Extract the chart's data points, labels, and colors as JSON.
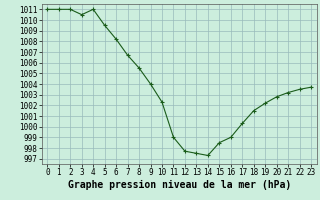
{
  "x": [
    0,
    1,
    2,
    3,
    4,
    5,
    6,
    7,
    8,
    9,
    10,
    11,
    12,
    13,
    14,
    15,
    16,
    17,
    18,
    19,
    20,
    21,
    22,
    23
  ],
  "y": [
    1011,
    1011,
    1011,
    1010.5,
    1011,
    1009.5,
    1008.2,
    1006.7,
    1005.5,
    1004.0,
    1002.3,
    999.0,
    997.7,
    997.5,
    997.3,
    998.5,
    999.0,
    1000.3,
    1001.5,
    1002.2,
    1002.8,
    1003.2,
    1003.5,
    1003.7
  ],
  "ylim": [
    996.5,
    1011.5
  ],
  "yticks": [
    997,
    998,
    999,
    1000,
    1001,
    1002,
    1003,
    1004,
    1005,
    1006,
    1007,
    1008,
    1009,
    1010,
    1011
  ],
  "xlim": [
    -0.5,
    23.5
  ],
  "xticks": [
    0,
    1,
    2,
    3,
    4,
    5,
    6,
    7,
    8,
    9,
    10,
    11,
    12,
    13,
    14,
    15,
    16,
    17,
    18,
    19,
    20,
    21,
    22,
    23
  ],
  "line_color": "#1a5c1a",
  "marker": "+",
  "bg_color": "#cceedd",
  "grid_color": "#99bbbb",
  "xlabel": "Graphe pression niveau de la mer (hPa)",
  "xlabel_fontsize": 7,
  "tick_fontsize": 5.5
}
